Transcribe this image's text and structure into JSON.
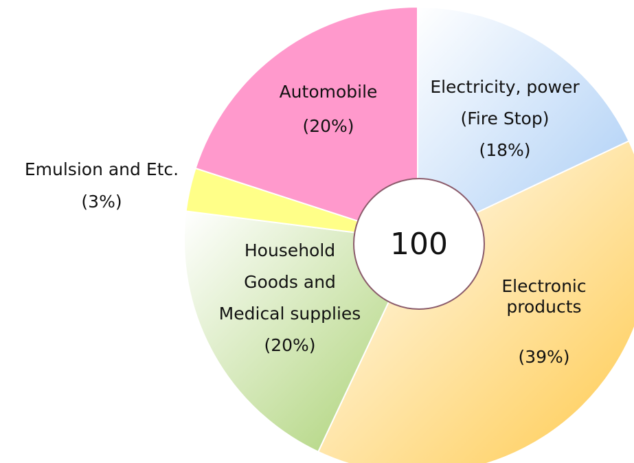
{
  "chart_data": {
    "type": "pie",
    "categories": [
      "Electricity, power\n(Fire Stop)",
      "Electronic\nproducts",
      "Household\nGoods and\nMedical supplies",
      "Emulsion and Etc.",
      "Automobile"
    ],
    "values": [
      18,
      39,
      20,
      3,
      20
    ],
    "value_labels": [
      "(18%)",
      "(39%)",
      "(20%)",
      "(3%)",
      "(20%)"
    ],
    "colors": [
      "#a8ccf5",
      "#ffc94a",
      "#a8d070",
      "#ffff88",
      "#ff99cc"
    ],
    "center_label": "100"
  }
}
